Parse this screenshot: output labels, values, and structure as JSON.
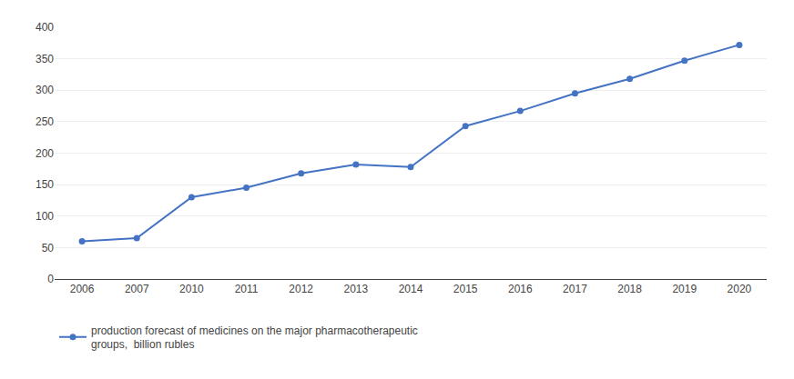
{
  "chart_data": {
    "type": "line",
    "categories": [
      "2006",
      "2007",
      "2010",
      "2011",
      "2012",
      "2013",
      "2014",
      "2015",
      "2016",
      "2017",
      "2018",
      "2019",
      "2020"
    ],
    "series": [
      {
        "name": "production forecast of medicines on the major pharmacotherapeutic\ngroups,  billion rubles",
        "color": "#4472C4",
        "marker": "circle",
        "values": [
          60,
          65,
          130,
          145,
          168,
          182,
          178,
          243,
          267,
          295,
          318,
          347,
          372
        ]
      }
    ],
    "ylim": [
      0,
      400
    ],
    "yticks": [
      0,
      50,
      100,
      150,
      200,
      250,
      300,
      350,
      400
    ],
    "grid": true,
    "legend": "bottom"
  }
}
